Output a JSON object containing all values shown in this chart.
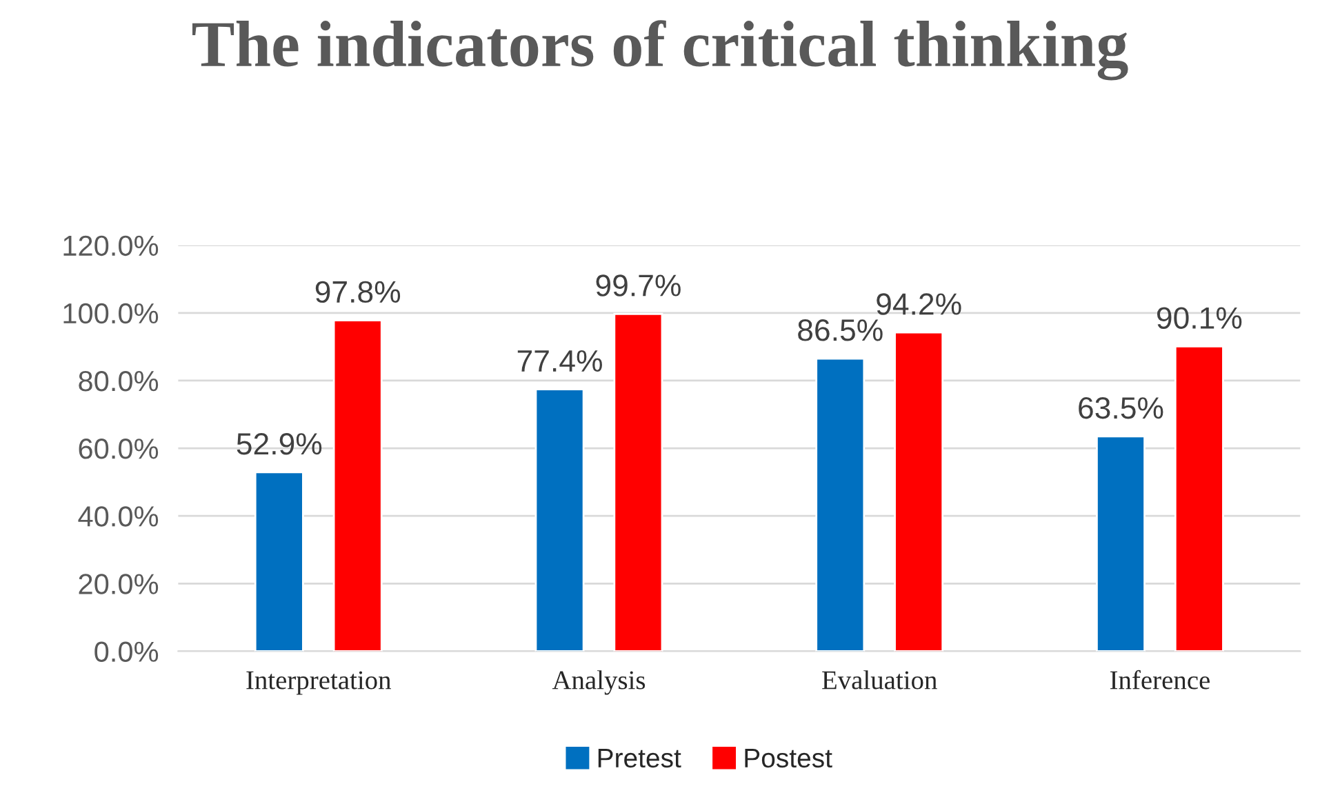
{
  "chart_data": {
    "type": "bar",
    "title": "The indicators of critical thinking",
    "categories": [
      "Interpretation",
      "Analysis",
      "Evaluation",
      "Inference"
    ],
    "series": [
      {
        "name": "Pretest",
        "color": "#0070c0",
        "values": [
          52.9,
          77.4,
          86.5,
          63.5
        ],
        "value_labels": [
          "52.9%",
          "77.4%",
          "86.5%",
          "63.5%"
        ]
      },
      {
        "name": "Postest",
        "color": "#ff0000",
        "values": [
          97.8,
          99.7,
          94.2,
          90.1
        ],
        "value_labels": [
          "97.8%",
          "99.7%",
          "94.2%",
          "90.1%"
        ]
      }
    ],
    "ylim": [
      0,
      120
    ],
    "yticks": [
      {
        "value": 0,
        "label": "0.0%"
      },
      {
        "value": 20,
        "label": "20.0%"
      },
      {
        "value": 40,
        "label": "40.0%"
      },
      {
        "value": 60,
        "label": "60.0%"
      },
      {
        "value": 80,
        "label": "80.0%"
      },
      {
        "value": 100,
        "label": "100.0%"
      },
      {
        "value": 120,
        "label": "120.0%"
      }
    ],
    "grid": "y",
    "legend": "bottom"
  }
}
